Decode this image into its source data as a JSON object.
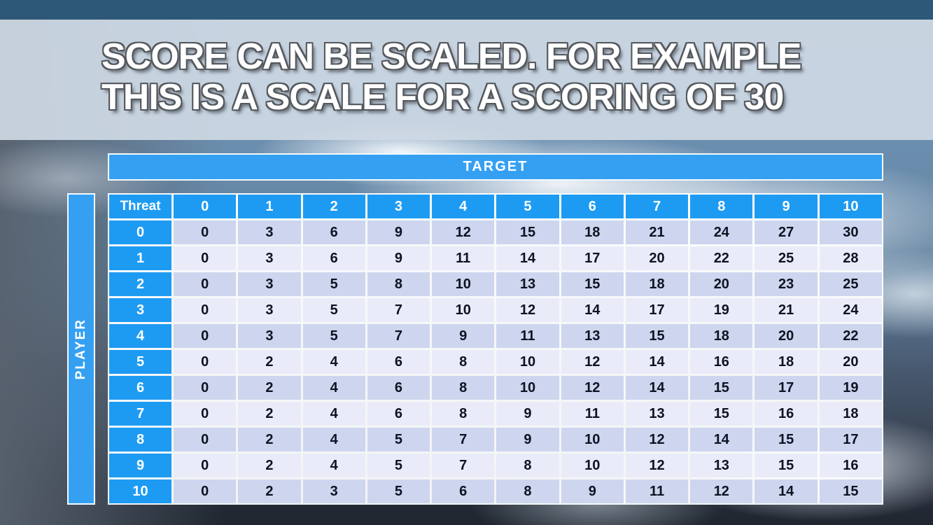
{
  "slide": {
    "title_line1": "SCORE CAN BE SCALED. FOR EXAMPLE",
    "title_line2": "THIS IS A SCALE FOR A SCORING OF 30"
  },
  "table": {
    "target_label": "TARGET",
    "player_label": "PLAYER",
    "corner_label": "Threat",
    "column_headers": [
      "0",
      "1",
      "2",
      "3",
      "4",
      "5",
      "6",
      "7",
      "8",
      "9",
      "10"
    ],
    "row_headers": [
      "0",
      "1",
      "2",
      "3",
      "4",
      "5",
      "6",
      "7",
      "8",
      "9",
      "10"
    ],
    "rows": [
      [
        0,
        3,
        6,
        9,
        12,
        15,
        18,
        21,
        24,
        27,
        30
      ],
      [
        0,
        3,
        6,
        9,
        11,
        14,
        17,
        20,
        22,
        25,
        28
      ],
      [
        0,
        3,
        5,
        8,
        10,
        13,
        15,
        18,
        20,
        23,
        25
      ],
      [
        0,
        3,
        5,
        7,
        10,
        12,
        14,
        17,
        19,
        21,
        24
      ],
      [
        0,
        3,
        5,
        7,
        9,
        11,
        13,
        15,
        18,
        20,
        22
      ],
      [
        0,
        2,
        4,
        6,
        8,
        10,
        12,
        14,
        16,
        18,
        20
      ],
      [
        0,
        2,
        4,
        6,
        8,
        10,
        12,
        14,
        15,
        17,
        19
      ],
      [
        0,
        2,
        4,
        6,
        8,
        9,
        11,
        13,
        15,
        16,
        18
      ],
      [
        0,
        2,
        4,
        5,
        7,
        9,
        10,
        12,
        14,
        15,
        17
      ],
      [
        0,
        2,
        4,
        5,
        7,
        8,
        10,
        12,
        13,
        15,
        16
      ],
      [
        0,
        2,
        3,
        5,
        6,
        8,
        9,
        11,
        12,
        14,
        15
      ]
    ]
  },
  "colors": {
    "header_blue": "#1D9BF3",
    "bar_blue": "#35A0F2",
    "row_dark": "#CDD6EE",
    "row_light": "#E9ECF8",
    "cell_text": "#0E1322",
    "top_band": "#2D5877",
    "title_band": "#CED9E4",
    "title_text": "#FFFFFF",
    "title_outline": "#54585D"
  }
}
